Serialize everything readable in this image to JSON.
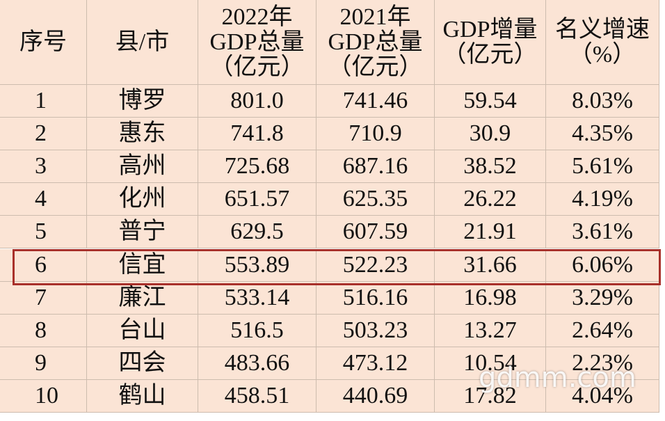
{
  "table": {
    "header": [
      [
        "序号"
      ],
      [
        "县/市"
      ],
      [
        "2022年",
        "GDP总量",
        "（亿元）"
      ],
      [
        "2021年",
        "GDP总量",
        "（亿元）"
      ],
      [
        "GDP增量",
        "（亿元）"
      ],
      [
        "名义增速",
        "（%）"
      ]
    ],
    "rows": [
      [
        "1",
        "博罗",
        "801.0",
        "741.46",
        "59.54",
        "8.03%"
      ],
      [
        "2",
        "惠东",
        "741.8",
        "710.9",
        "30.9",
        "4.35%"
      ],
      [
        "3",
        "高州",
        "725.68",
        "687.16",
        "38.52",
        "5.61%"
      ],
      [
        "4",
        "化州",
        "651.57",
        "625.35",
        "26.22",
        "4.19%"
      ],
      [
        "5",
        "普宁",
        "629.5",
        "607.59",
        "21.91",
        "3.61%"
      ],
      [
        "6",
        "信宜",
        "553.89",
        "522.23",
        "31.66",
        "6.06%"
      ],
      [
        "7",
        "廉江",
        "533.14",
        "516.16",
        "16.98",
        "3.29%"
      ],
      [
        "8",
        "台山",
        "516.5",
        "503.23",
        "13.27",
        "2.64%"
      ],
      [
        "9",
        "四会",
        "483.66",
        "473.12",
        "10.54",
        "2.23%"
      ],
      [
        "10",
        "鹤山",
        "458.51",
        "440.69",
        "17.82",
        "4.04%"
      ]
    ]
  },
  "watermark": "gdmm.com"
}
